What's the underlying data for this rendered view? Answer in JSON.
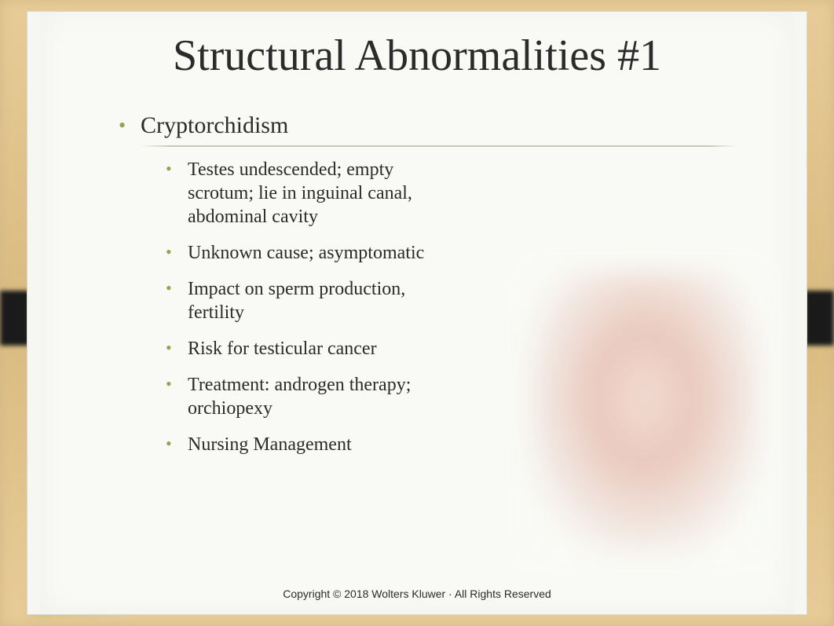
{
  "title": "Structural Abnormalities #1",
  "mainItem": "Cryptorchidism",
  "subItems": [
    "Testes undescended; empty scrotum; lie in inguinal canal, abdominal cavity",
    "Unknown cause; asymptomatic",
    "Impact on sperm production, fertility",
    "Risk for testicular cancer",
    "Treatment: androgen therapy; orchiopexy",
    "Nursing Management"
  ],
  "copyright": "Copyright © 2018 Wolters Kluwer · All Rights Reserved",
  "colors": {
    "bullet": "#9aa052",
    "frameBg": "#d4b888",
    "slideBg": "#f9faf6",
    "text": "#2b2b2b"
  },
  "fonts": {
    "titleSize": 56,
    "mainItemSize": 30,
    "subItemSize": 24,
    "copyrightSize": 14
  }
}
